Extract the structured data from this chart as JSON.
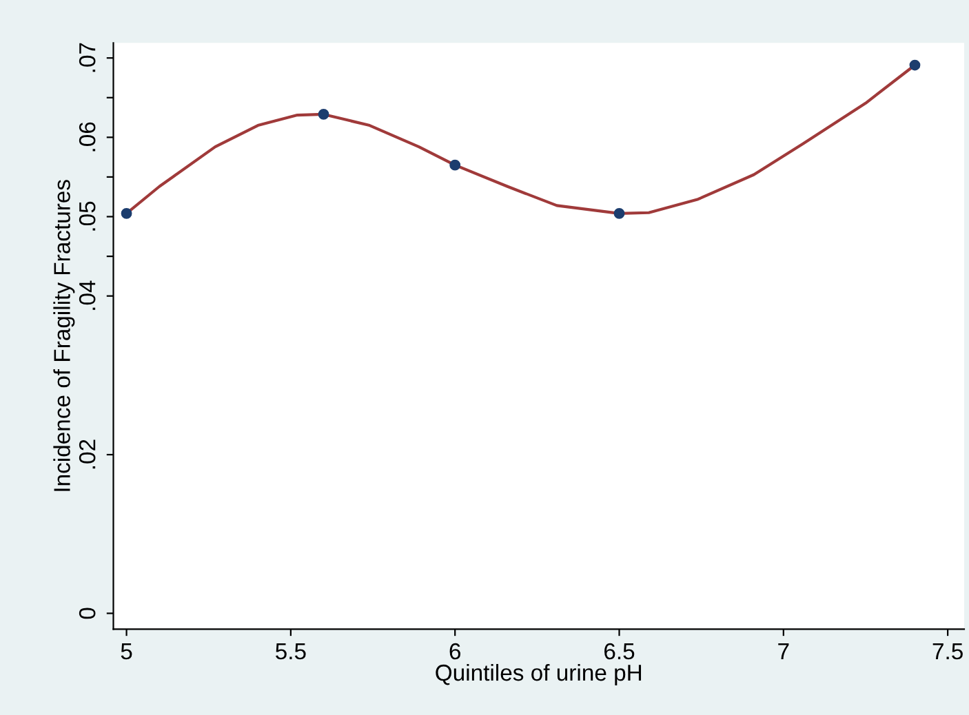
{
  "chart_data": {
    "type": "line",
    "xlabel": "Quintiles of urine pH",
    "ylabel": "Incidence of Fragility Fractures",
    "x": [
      5,
      5.6,
      6.0,
      6.5,
      7.4
    ],
    "series": [
      {
        "color": "#a03a3a",
        "x": [
          5.0,
          5.1,
          5.27,
          5.4,
          5.52,
          5.6,
          5.74,
          5.89,
          6.0,
          6.16,
          6.31,
          6.5,
          6.59,
          6.74,
          6.91,
          7.06,
          7.25,
          7.4
        ],
        "values": [
          0.0504,
          0.0538,
          0.0588,
          0.0615,
          0.0628,
          0.0629,
          0.0615,
          0.0588,
          0.0565,
          0.0538,
          0.0514,
          0.0504,
          0.0505,
          0.0522,
          0.0553,
          0.0592,
          0.0643,
          0.0691
        ]
      },
      {
        "type": "scatter",
        "color": "#1c3d6e",
        "values": [
          0.0504,
          0.0629,
          0.0565,
          0.0504,
          0.0691
        ]
      }
    ],
    "xlim": [
      4.96,
      7.55
    ],
    "ylim": [
      -0.002,
      0.0719
    ],
    "xticks": [
      5,
      5.5,
      6,
      6.5,
      7,
      7.5
    ],
    "yticks": [
      {
        "value": 0,
        "label": "0"
      },
      {
        "value": 0.02,
        "label": ".02"
      },
      {
        "value": 0.04,
        "label": ".04"
      },
      {
        "value": 0.045,
        "label": null
      },
      {
        "value": 0.05,
        "label": ".05"
      },
      {
        "value": 0.055,
        "label": null
      },
      {
        "value": 0.06,
        "label": ".06"
      },
      {
        "value": 0.065,
        "label": null
      },
      {
        "value": 0.07,
        "label": ".07"
      }
    ],
    "grid": false,
    "legend": false
  }
}
